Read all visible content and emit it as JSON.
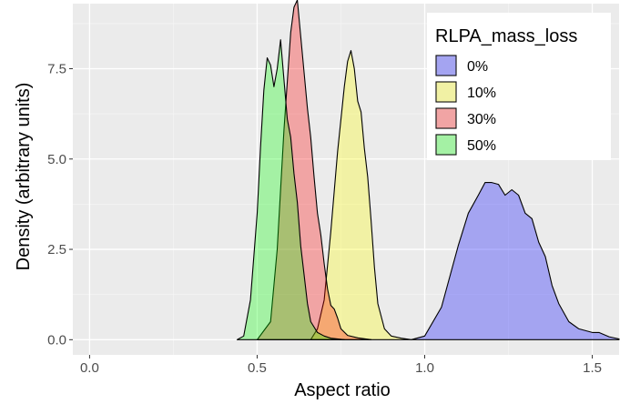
{
  "chart_data": {
    "type": "area",
    "subtype": "density",
    "title": "",
    "xlabel": "Aspect ratio",
    "ylabel": "Density (arbitrary units)",
    "xlim": [
      -0.05,
      1.58
    ],
    "ylim": [
      -0.42,
      9.3
    ],
    "x_ticks": [
      0.0,
      0.5,
      1.0,
      1.5
    ],
    "x_tick_labels": [
      "0.0",
      "0.5",
      "1.0",
      "1.5"
    ],
    "y_ticks": [
      0.0,
      2.5,
      5.0,
      7.5
    ],
    "y_tick_labels": [
      "0.0",
      "2.5",
      "5.0",
      "7.5"
    ],
    "grid": true,
    "background": "#EBEBEB",
    "legend": {
      "title": "RLPA_mass_loss",
      "position": "top-right, inside"
    },
    "series": [
      {
        "name": "0%",
        "fill": "#0000FF",
        "points": [
          [
            0.96,
            0.0
          ],
          [
            1.0,
            0.1
          ],
          [
            1.05,
            0.9
          ],
          [
            1.1,
            2.6
          ],
          [
            1.13,
            3.5
          ],
          [
            1.16,
            4.0
          ],
          [
            1.18,
            4.35
          ],
          [
            1.2,
            4.35
          ],
          [
            1.22,
            4.3
          ],
          [
            1.24,
            4.0
          ],
          [
            1.26,
            4.15
          ],
          [
            1.28,
            4.0
          ],
          [
            1.3,
            3.5
          ],
          [
            1.32,
            3.35
          ],
          [
            1.34,
            2.7
          ],
          [
            1.36,
            2.3
          ],
          [
            1.38,
            1.5
          ],
          [
            1.4,
            1.0
          ],
          [
            1.43,
            0.5
          ],
          [
            1.46,
            0.3
          ],
          [
            1.5,
            0.2
          ],
          [
            1.52,
            0.2
          ],
          [
            1.55,
            0.08
          ],
          [
            1.58,
            0.02
          ]
        ]
      },
      {
        "name": "10%",
        "fill": "#FFFF00",
        "points": [
          [
            0.66,
            0.0
          ],
          [
            0.68,
            0.3
          ],
          [
            0.7,
            1.1
          ],
          [
            0.72,
            3.0
          ],
          [
            0.74,
            5.2
          ],
          [
            0.76,
            7.0
          ],
          [
            0.77,
            7.7
          ],
          [
            0.78,
            8.0
          ],
          [
            0.79,
            7.5
          ],
          [
            0.8,
            6.6
          ],
          [
            0.81,
            6.3
          ],
          [
            0.82,
            5.3
          ],
          [
            0.83,
            4.5
          ],
          [
            0.84,
            3.3
          ],
          [
            0.85,
            2.0
          ],
          [
            0.86,
            1.0
          ],
          [
            0.88,
            0.3
          ],
          [
            0.9,
            0.1
          ],
          [
            0.93,
            0.04
          ],
          [
            0.96,
            0.0
          ]
        ]
      },
      {
        "name": "30%",
        "fill": "#FF0000",
        "points": [
          [
            0.5,
            0.0
          ],
          [
            0.54,
            0.5
          ],
          [
            0.56,
            2.5
          ],
          [
            0.58,
            5.8
          ],
          [
            0.6,
            8.5
          ],
          [
            0.61,
            9.2
          ],
          [
            0.62,
            9.4
          ],
          [
            0.63,
            8.4
          ],
          [
            0.64,
            7.4
          ],
          [
            0.65,
            6.4
          ],
          [
            0.66,
            5.6
          ],
          [
            0.67,
            4.5
          ],
          [
            0.68,
            3.5
          ],
          [
            0.69,
            2.9
          ],
          [
            0.7,
            2.1
          ],
          [
            0.71,
            1.4
          ],
          [
            0.72,
            0.95
          ],
          [
            0.73,
            0.85
          ],
          [
            0.74,
            0.6
          ],
          [
            0.75,
            0.3
          ],
          [
            0.77,
            0.12
          ],
          [
            0.8,
            0.05
          ],
          [
            0.84,
            0.0
          ]
        ]
      },
      {
        "name": "50%",
        "fill": "#00FF00",
        "points": [
          [
            0.44,
            0.0
          ],
          [
            0.46,
            0.1
          ],
          [
            0.48,
            1.1
          ],
          [
            0.5,
            3.5
          ],
          [
            0.51,
            5.3
          ],
          [
            0.52,
            6.9
          ],
          [
            0.53,
            7.8
          ],
          [
            0.54,
            7.6
          ],
          [
            0.55,
            7.0
          ],
          [
            0.56,
            7.5
          ],
          [
            0.57,
            8.3
          ],
          [
            0.58,
            7.2
          ],
          [
            0.59,
            6.1
          ],
          [
            0.6,
            5.6
          ],
          [
            0.61,
            4.6
          ],
          [
            0.62,
            3.8
          ],
          [
            0.63,
            2.6
          ],
          [
            0.64,
            1.8
          ],
          [
            0.65,
            1.0
          ],
          [
            0.66,
            0.5
          ],
          [
            0.68,
            0.2
          ],
          [
            0.7,
            0.1
          ],
          [
            0.72,
            0.04
          ],
          [
            0.76,
            0.0
          ]
        ]
      }
    ]
  }
}
